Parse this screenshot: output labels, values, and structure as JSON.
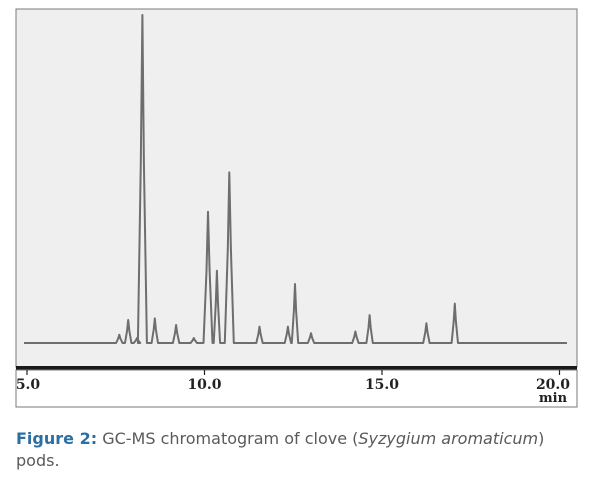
{
  "caption": {
    "figure_label": "Figure 2:",
    "text_before": "GC-MS chromatogram of clove (",
    "species": "Syzygium aromaticum",
    "text_after": ")",
    "text_line2": "pods."
  },
  "chart_data": {
    "type": "line",
    "title": "",
    "xlabel": "min",
    "ylabel": "",
    "xlim": [
      5.0,
      20.5
    ],
    "ylim": [
      0,
      100
    ],
    "x_ticks": [
      5.0,
      10.0,
      15.0,
      20.0
    ],
    "x_tick_labels": [
      "5.0",
      "10.0",
      "15.0",
      "20.0"
    ],
    "baseline": 0,
    "grid": false,
    "legend": "none",
    "colors": {
      "trace": "#6e6e6e",
      "background": "#efefef",
      "axis": "#1a1a1a"
    },
    "peaks": [
      {
        "rt": 7.6,
        "height": 2.5
      },
      {
        "rt": 7.85,
        "height": 7.0
      },
      {
        "rt": 8.1,
        "height": 1.5
      },
      {
        "rt": 8.25,
        "height": 100
      },
      {
        "rt": 8.6,
        "height": 7.5
      },
      {
        "rt": 9.2,
        "height": 5.5
      },
      {
        "rt": 9.7,
        "height": 1.5
      },
      {
        "rt": 10.1,
        "height": 40.0
      },
      {
        "rt": 10.35,
        "height": 22.0
      },
      {
        "rt": 10.7,
        "height": 52.0
      },
      {
        "rt": 11.55,
        "height": 5.0
      },
      {
        "rt": 12.35,
        "height": 5.0
      },
      {
        "rt": 12.55,
        "height": 18.0
      },
      {
        "rt": 13.0,
        "height": 3.0
      },
      {
        "rt": 14.25,
        "height": 3.5
      },
      {
        "rt": 14.65,
        "height": 8.5
      },
      {
        "rt": 16.25,
        "height": 6.0
      },
      {
        "rt": 17.05,
        "height": 12.0
      }
    ]
  }
}
